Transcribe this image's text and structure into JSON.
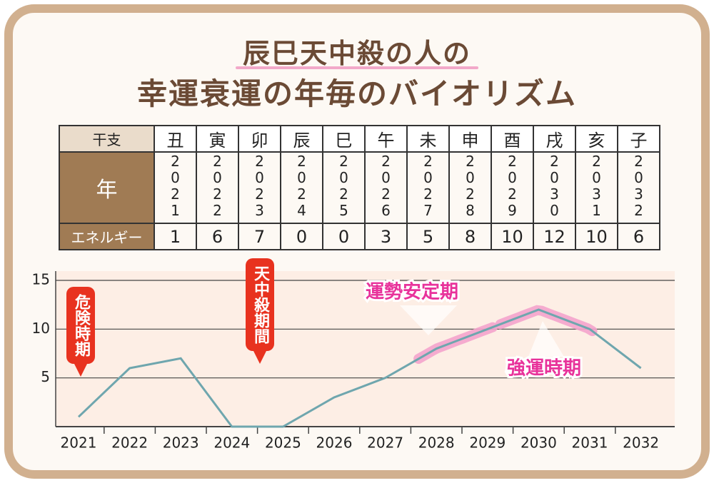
{
  "title": {
    "line1": "辰巳天中殺の人の",
    "line2": "幸運衰運の年毎のバイオリズム"
  },
  "table": {
    "row_labels": [
      "干支",
      "年",
      "エネルギー"
    ],
    "eto": [
      "丑",
      "寅",
      "卯",
      "辰",
      "巳",
      "午",
      "未",
      "申",
      "酉",
      "戌",
      "亥",
      "子"
    ],
    "years": [
      "2021",
      "2022",
      "2023",
      "2024",
      "2025",
      "2026",
      "2027",
      "2028",
      "2029",
      "2030",
      "2031",
      "2032"
    ],
    "energy": [
      "1",
      "6",
      "7",
      "0",
      "0",
      "3",
      "5",
      "8",
      "10",
      "12",
      "10",
      "6"
    ]
  },
  "chart_data": {
    "type": "line",
    "categories": [
      "2021",
      "2022",
      "2023",
      "2024",
      "2025",
      "2026",
      "2027",
      "2028",
      "2029",
      "2030",
      "2031",
      "2032"
    ],
    "values": [
      1,
      6,
      7,
      0,
      0,
      3,
      5,
      8,
      10,
      12,
      10,
      6
    ],
    "color": "#6fa6ae",
    "ylim": [
      0,
      15
    ],
    "yticks": [
      5,
      10,
      15
    ],
    "grid": true,
    "callouts": [
      "危険時期",
      "天中殺期間"
    ],
    "period_labels": [
      "運勢安定期",
      "強運時期"
    ]
  }
}
